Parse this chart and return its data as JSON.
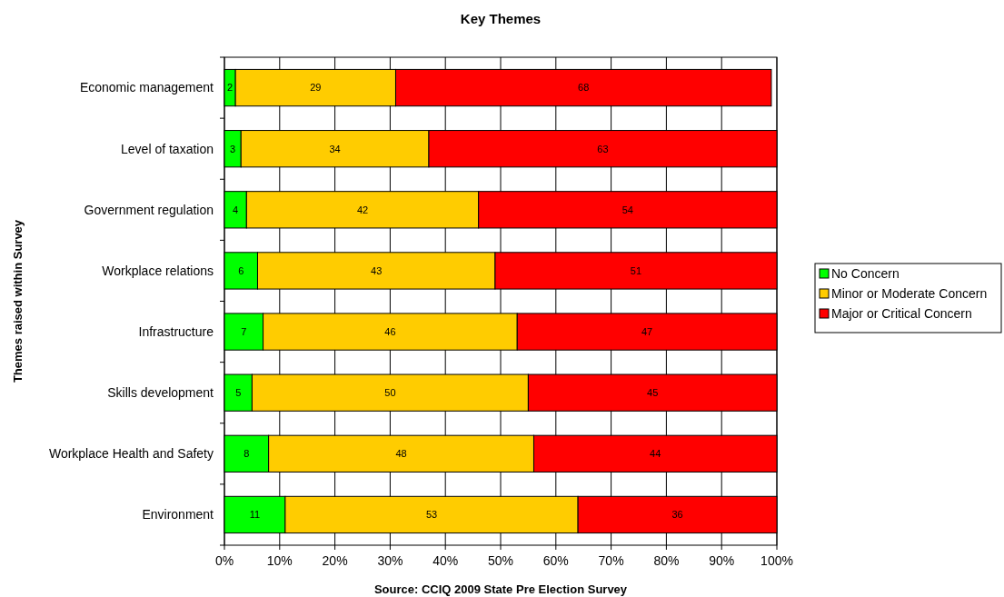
{
  "chart_data": {
    "type": "bar",
    "orientation": "horizontal",
    "stacked": true,
    "title": "Key Themes",
    "xlabel": "Source: CCIQ 2009 State Pre Election Survey",
    "ylabel": "Themes raised within Survey",
    "categories": [
      "Economic management",
      "Level of taxation",
      "Government regulation",
      "Workplace relations",
      "Infrastructure",
      "Skills development",
      "Workplace Health and Safety",
      "Environment"
    ],
    "series": [
      {
        "name": "No Concern",
        "color": "#00ff00",
        "values": [
          2,
          3,
          4,
          6,
          7,
          5,
          8,
          11
        ]
      },
      {
        "name": "Minor or Moderate Concern",
        "color": "#ffcc00",
        "values": [
          29,
          34,
          42,
          43,
          46,
          50,
          48,
          53
        ]
      },
      {
        "name": "Major or Critical Concern",
        "color": "#ff0000",
        "values": [
          68,
          63,
          54,
          51,
          47,
          45,
          44,
          36
        ]
      }
    ],
    "xlim": [
      0,
      100
    ],
    "xticks": [
      {
        "value": 0,
        "label": "0%"
      },
      {
        "value": 10,
        "label": "10%"
      },
      {
        "value": 20,
        "label": "20%"
      },
      {
        "value": 30,
        "label": "30%"
      },
      {
        "value": 40,
        "label": "40%"
      },
      {
        "value": 50,
        "label": "50%"
      },
      {
        "value": 60,
        "label": "60%"
      },
      {
        "value": 70,
        "label": "70%"
      },
      {
        "value": 80,
        "label": "80%"
      },
      {
        "value": 90,
        "label": "90%"
      },
      {
        "value": 100,
        "label": "100%"
      }
    ],
    "grid": "x",
    "legend": "right",
    "data_labels": true
  }
}
